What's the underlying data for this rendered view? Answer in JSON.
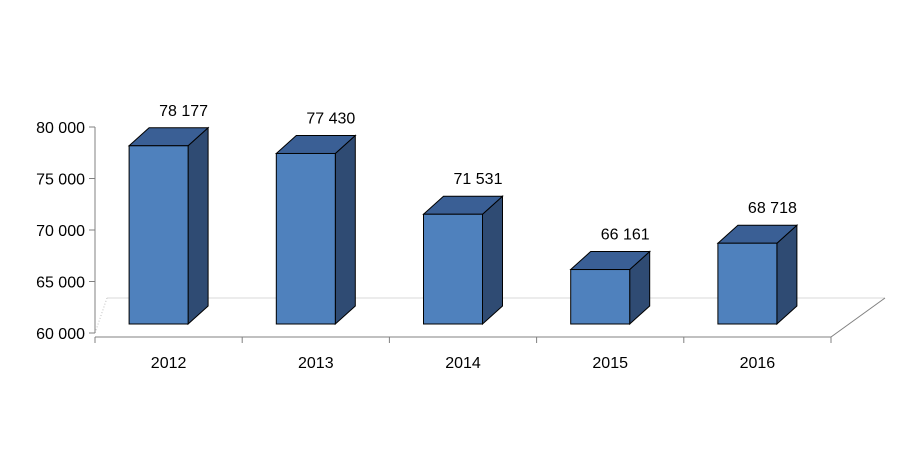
{
  "chart_data": {
    "type": "bar",
    "categories": [
      "2012",
      "2013",
      "2014",
      "2015",
      "2016"
    ],
    "values": [
      78177,
      77430,
      71531,
      66161,
      68718
    ],
    "data_labels": [
      "78 177",
      "77 430",
      "71 531",
      "66 161",
      "68 718"
    ],
    "title": "",
    "xlabel": "",
    "ylabel": "",
    "ylim": [
      60000,
      80000
    ],
    "yticks": [
      60000,
      65000,
      70000,
      75000,
      80000
    ],
    "ytick_labels": [
      "60 000",
      "65 000",
      "70 000",
      "75 000",
      "80 000"
    ],
    "grid": false,
    "legend": "none",
    "bar_color": "#4f81bd",
    "bar_side_color": "#2f4b73",
    "bar_top_color": "#3a5f95"
  }
}
